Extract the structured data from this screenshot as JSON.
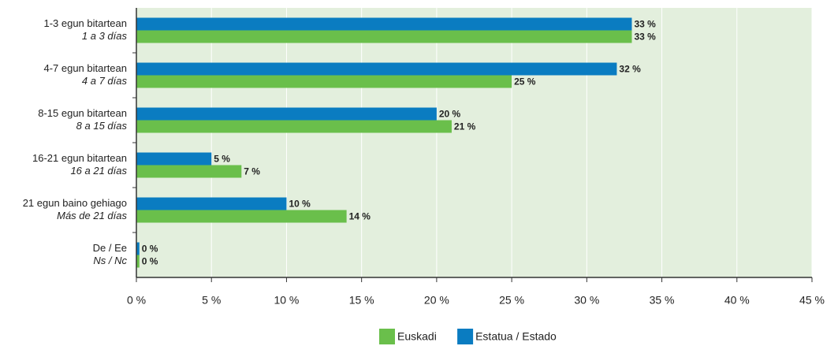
{
  "chart_data": {
    "type": "bar",
    "orientation": "horizontal",
    "categories": [
      [
        "1-3 egun bitartean",
        "1 a 3 días"
      ],
      [
        "4-7 egun bitartean",
        "4 a 7 días"
      ],
      [
        "8-15 egun bitartean",
        "8 a 15 días"
      ],
      [
        "16-21 egun bitartean",
        "16 a 21 días"
      ],
      [
        "21 egun baino gehiago",
        "Más de 21 días"
      ],
      [
        "De / Ee",
        "Ns / Nc"
      ]
    ],
    "series": [
      {
        "name": "Euskadi",
        "color": "#6abf4b",
        "values": [
          33,
          25,
          21,
          7,
          14,
          0.2
        ],
        "value_labels": [
          "33 %",
          "25 %",
          "21 %",
          "7 %",
          "14 %",
          "0 %"
        ]
      },
      {
        "name": "Estatua / Estado",
        "color": "#0a7cc1",
        "values": [
          33,
          32,
          20,
          5,
          10,
          0.2
        ],
        "value_labels": [
          "33 %",
          "32 %",
          "20 %",
          "5 %",
          "10 %",
          "0 %"
        ]
      }
    ],
    "xlim": [
      0,
      45
    ],
    "xticks": [
      {
        "value": 0,
        "label": "0 %"
      },
      {
        "value": 5,
        "label": "5 %"
      },
      {
        "value": 10,
        "label": "10 %"
      },
      {
        "value": 15,
        "label": "15 %"
      },
      {
        "value": 20,
        "label": "20 %"
      },
      {
        "value": 25,
        "label": "25 %"
      },
      {
        "value": 30,
        "label": "30 %"
      },
      {
        "value": 35,
        "label": "35 %"
      },
      {
        "value": 40,
        "label": "40 %"
      },
      {
        "value": 45,
        "label": "45 %"
      }
    ],
    "grid": true,
    "legend": "bottom"
  }
}
